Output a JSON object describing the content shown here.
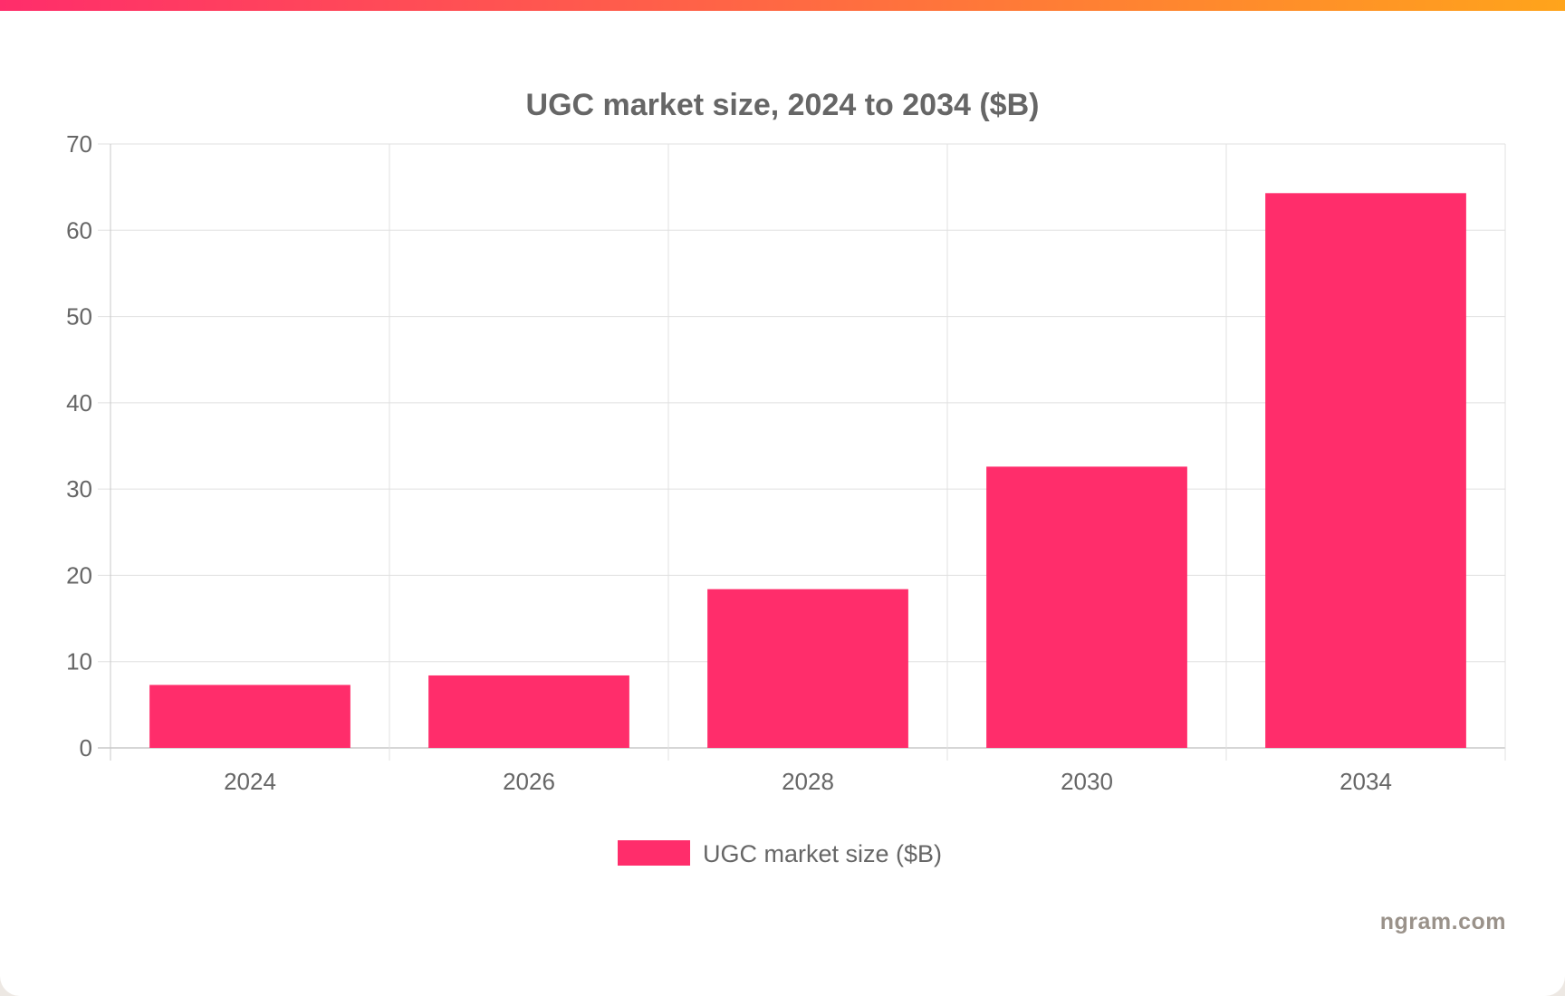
{
  "colors": {
    "bar": "#ff2d6b",
    "strip_start": "#ff2d6b",
    "strip_end": "#ffa41b",
    "text": "#666666",
    "grid": "#e0e0e0",
    "axis": "#c8c8c8"
  },
  "chart_data": {
    "type": "bar",
    "title": "UGC market size, 2024 to 2034 ($B)",
    "categories": [
      "2024",
      "2026",
      "2028",
      "2030",
      "2034"
    ],
    "series": [
      {
        "name": "UGC market size ($B)",
        "values": [
          7.3,
          8.4,
          18.4,
          32.6,
          64.3
        ]
      }
    ],
    "ylim": [
      0,
      70
    ],
    "yticks": [
      0,
      10,
      20,
      30,
      40,
      50,
      60,
      70
    ],
    "grid": true,
    "legend_position": "bottom-center"
  },
  "branding": {
    "watermark": "ngram.com"
  }
}
